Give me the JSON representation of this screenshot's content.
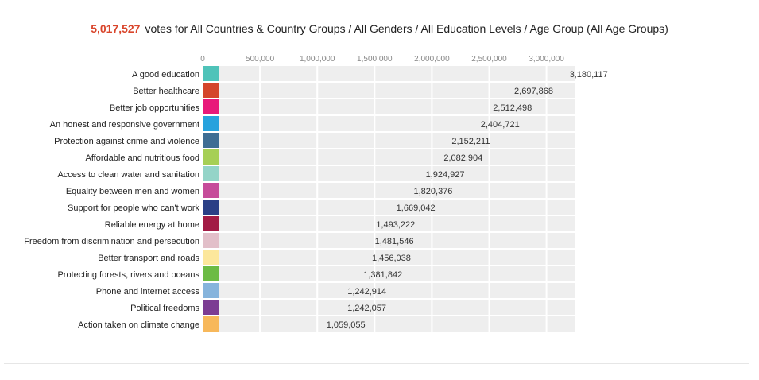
{
  "header": {
    "total_votes": "5,017,527",
    "subtitle": "votes for All Countries & Country Groups / All Genders / All Education Levels / Age Group (All Age Groups)"
  },
  "colors": {
    "accent": "#d9452b",
    "track": "#eeeeee"
  },
  "chart_data": {
    "type": "bar",
    "orientation": "horizontal",
    "title": "",
    "xlabel": "",
    "ylabel": "",
    "xlim": [
      0,
      3250000
    ],
    "x_ticks": [
      0,
      500000,
      1000000,
      1500000,
      2000000,
      2500000,
      3000000
    ],
    "x_tick_labels": [
      "0",
      "500,000",
      "1,000,000",
      "1,500,000",
      "2,000,000",
      "2,500,000",
      "3,000,000"
    ],
    "grid": true,
    "legend": "none",
    "categories": [
      "A good education",
      "Better healthcare",
      "Better job opportunities",
      "An honest and responsive government",
      "Protection against crime and violence",
      "Affordable and nutritious food",
      "Access to clean water and sanitation",
      "Equality between men and women",
      "Support for people who can't work",
      "Reliable energy at home",
      "Freedom from discrimination and persecution",
      "Better transport and roads",
      "Protecting forests, rivers and oceans",
      "Phone and internet access",
      "Political freedoms",
      "Action taken on climate change"
    ],
    "values": [
      3180117,
      2697868,
      2512498,
      2404721,
      2152211,
      2082904,
      1924927,
      1820376,
      1669042,
      1493222,
      1481546,
      1456038,
      1381842,
      1242914,
      1242057,
      1059055
    ],
    "value_labels": [
      "3,180,117",
      "2,697,868",
      "2,512,498",
      "2,404,721",
      "2,152,211",
      "2,082,904",
      "1,924,927",
      "1,820,376",
      "1,669,042",
      "1,493,222",
      "1,481,546",
      "1,456,038",
      "1,381,842",
      "1,242,914",
      "1,242,057",
      "1,059,055"
    ],
    "swatch_colors": [
      "#4fc3b9",
      "#d4452b",
      "#e8197a",
      "#27a2dd",
      "#3e6d94",
      "#a6cf55",
      "#94d4c8",
      "#c64c9a",
      "#2a3f86",
      "#a21b45",
      "#e2bfc9",
      "#fce79c",
      "#6cbb44",
      "#86b4dc",
      "#7c3c93",
      "#f7b85b"
    ]
  }
}
